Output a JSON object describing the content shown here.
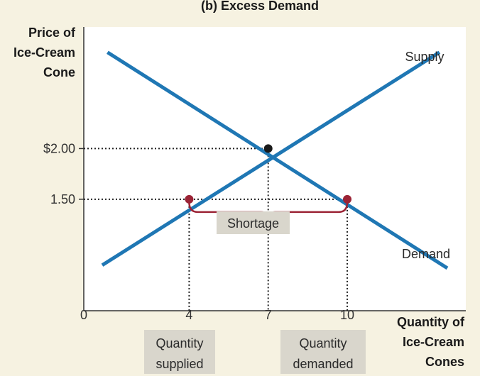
{
  "chart_data": {
    "type": "line",
    "title": "(b) Excess Demand",
    "ylabel": [
      "Price of",
      "Ice-Cream",
      "Cone"
    ],
    "xlabel": [
      "Quantity of",
      "Ice-Cream",
      "Cones"
    ],
    "xlim": [
      0,
      14.5
    ],
    "ylim": [
      0.4,
      3.2
    ],
    "x_ticks": [
      {
        "value": 0,
        "label": "0"
      },
      {
        "value": 4,
        "label": "4"
      },
      {
        "value": 7,
        "label": "7"
      },
      {
        "value": 10,
        "label": "10"
      }
    ],
    "y_ticks": [
      {
        "value": 2.0,
        "label": "$2.00"
      },
      {
        "value": 1.5,
        "label": "1.50"
      }
    ],
    "series": [
      {
        "name": "Supply",
        "color": "#1f77b4",
        "x": [
          0.7,
          13.5
        ],
        "y": [
          0.85,
          2.95
        ]
      },
      {
        "name": "Demand",
        "color": "#1f77b4",
        "x": [
          0.9,
          13.8
        ],
        "y": [
          2.95,
          0.82
        ]
      }
    ],
    "points": [
      {
        "name": "equilibrium",
        "x": 7,
        "y": 2.0,
        "color": "#1a1a1a"
      },
      {
        "name": "quantity-supplied-point",
        "x": 4,
        "y": 1.5,
        "color": "#9b2335"
      },
      {
        "name": "quantity-demanded-point",
        "x": 10,
        "y": 1.5,
        "color": "#9b2335"
      }
    ],
    "annotations": {
      "shortage": "Shortage",
      "quantity_supplied": [
        "Quantity",
        "supplied"
      ],
      "quantity_demanded": [
        "Quantity",
        "demanded"
      ]
    },
    "colors": {
      "background": "#f6f2e1",
      "plot": "#ffffff",
      "line": "#1f77b4",
      "bracket": "#9b2335",
      "label_box": "#d9d6cc"
    }
  }
}
